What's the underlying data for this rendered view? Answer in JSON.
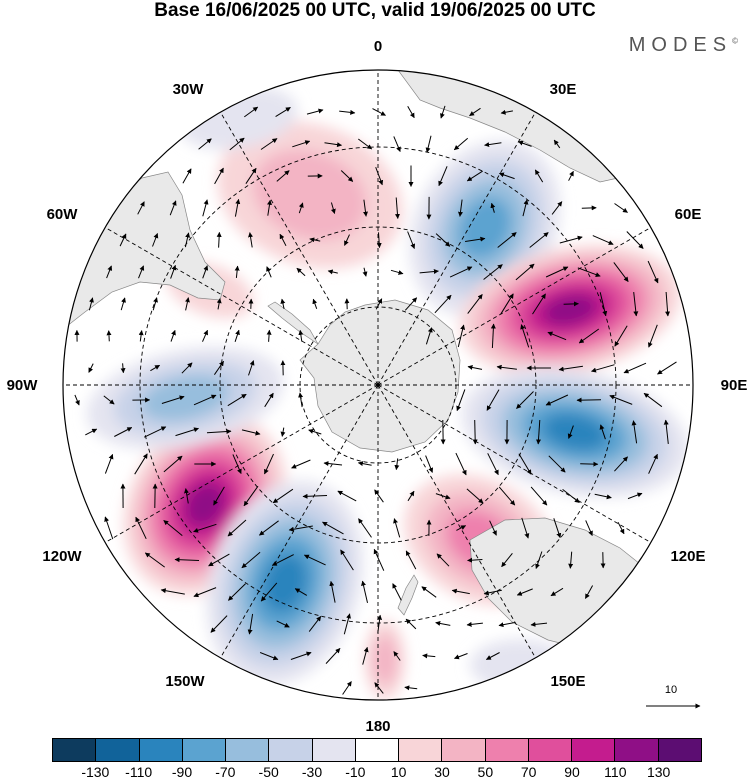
{
  "title": "Base 16/06/2025 00 UTC, valid 19/06/2025 00 UTC",
  "brand": "MODES",
  "brand_mark": "©",
  "map": {
    "projection": "south-polar-stereographic",
    "longitude_labels": {
      "top": "0",
      "top_right_1": "30E",
      "top_right_2": "60E",
      "right": "90E",
      "bottom_right_1": "120E",
      "bottom_right_2": "150E",
      "bottom": "180",
      "bottom_left_2": "150W",
      "bottom_left_1": "120W",
      "left": "90W",
      "top_left_2": "60W",
      "top_left_1": "30W"
    }
  },
  "reference_vector": {
    "label": "10"
  },
  "colorbar": {
    "colors": [
      "#0d3b5e",
      "#11639a",
      "#2a84bd",
      "#5ba3d0",
      "#97bedd",
      "#c7d2e8",
      "#e4e4f0",
      "#ffffff",
      "#f8d5d8",
      "#f3b4c4",
      "#ee80ad",
      "#e04f9c",
      "#c41c8e",
      "#8f0f86",
      "#5c0d72"
    ],
    "tick_labels": [
      "-130",
      "-110",
      "-90",
      "-70",
      "-50",
      "-30",
      "-10",
      "10",
      "30",
      "50",
      "70",
      "90",
      "110",
      "130"
    ]
  }
}
